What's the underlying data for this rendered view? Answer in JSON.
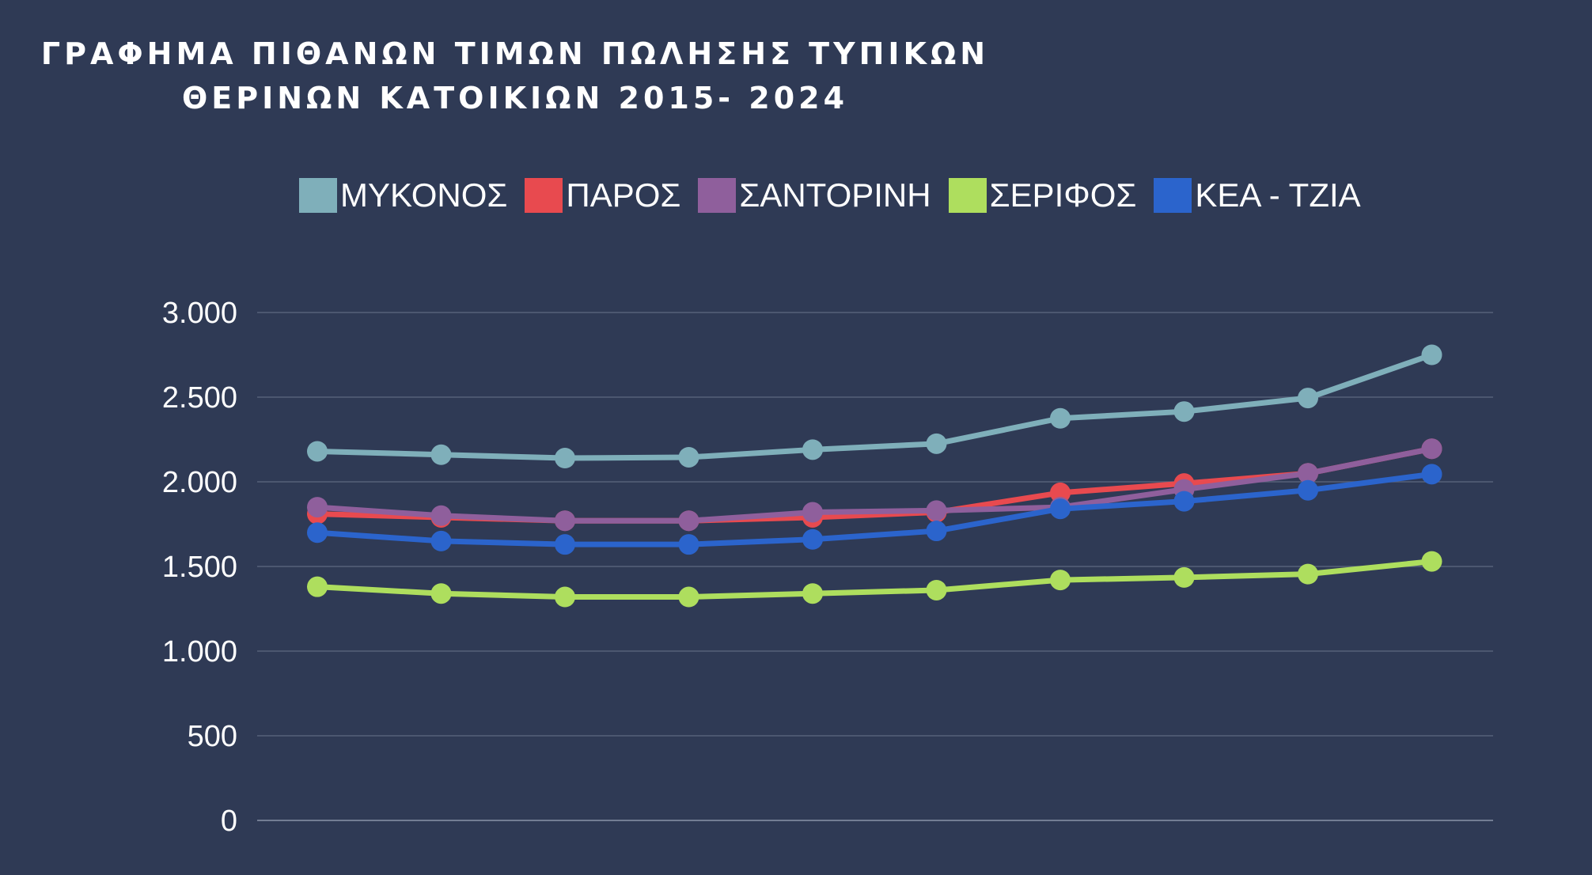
{
  "chart_data": {
    "type": "line",
    "title": "ΓΡΑΦΗΜΑ ΠΙΘΑΝΩΝ ΤΙΜΩΝ ΠΩΛΗΣΗΣ ΤΥΠΙΚΩΝ ΘΕΡΙΝΩΝ ΚΑΤΟΙΚΙΩΝ 2015- 2024",
    "title_lines": [
      "ΓΡΑΦΗΜΑ ΠΙΘΑΝΩΝ ΤΙΜΩΝ ΠΩΛΗΣΗΣ ΤΥΠΙΚΩΝ",
      "ΘΕΡΙΝΩΝ ΚΑΤΟΙΚΙΩΝ 2015- 2024"
    ],
    "xlabel": "",
    "ylabel": "",
    "ylim": [
      0,
      3000
    ],
    "yticks": [
      0,
      500,
      1000,
      1500,
      2000,
      2500,
      3000
    ],
    "ytick_labels": [
      "0",
      "500",
      "1.000",
      "1.500",
      "2.000",
      "2.500",
      "3.000"
    ],
    "grid": true,
    "legend_position": "top",
    "point_count": 10,
    "series": [
      {
        "name": "ΜΥΚΟΝΟΣ",
        "color": "#7fafba",
        "values": [
          2180,
          2160,
          2140,
          2145,
          2190,
          2225,
          2375,
          2415,
          2495,
          2750
        ]
      },
      {
        "name": "ΠΑΡΟΣ",
        "color": "#e84a4f",
        "values": [
          1810,
          1790,
          1770,
          1770,
          1790,
          1820,
          1935,
          1990,
          2050,
          2195
        ]
      },
      {
        "name": "ΣΑΝΤΟΡΙΝΗ",
        "color": "#8f5f9c",
        "values": [
          1850,
          1800,
          1770,
          1770,
          1820,
          1830,
          1850,
          1955,
          2050,
          2195
        ]
      },
      {
        "name": "ΣΕΡΙΦΟΣ",
        "color": "#aede5e",
        "values": [
          1380,
          1340,
          1320,
          1320,
          1340,
          1360,
          1420,
          1435,
          1455,
          1530
        ]
      },
      {
        "name": "ΚΕΑ - ΤΖΙΑ",
        "color": "#2b64cc",
        "values": [
          1700,
          1650,
          1630,
          1630,
          1660,
          1710,
          1840,
          1885,
          1950,
          2045
        ]
      }
    ]
  },
  "style": {
    "background": "#2f3a55",
    "grid_color": "#56617a",
    "text_color": "#ffffff"
  }
}
